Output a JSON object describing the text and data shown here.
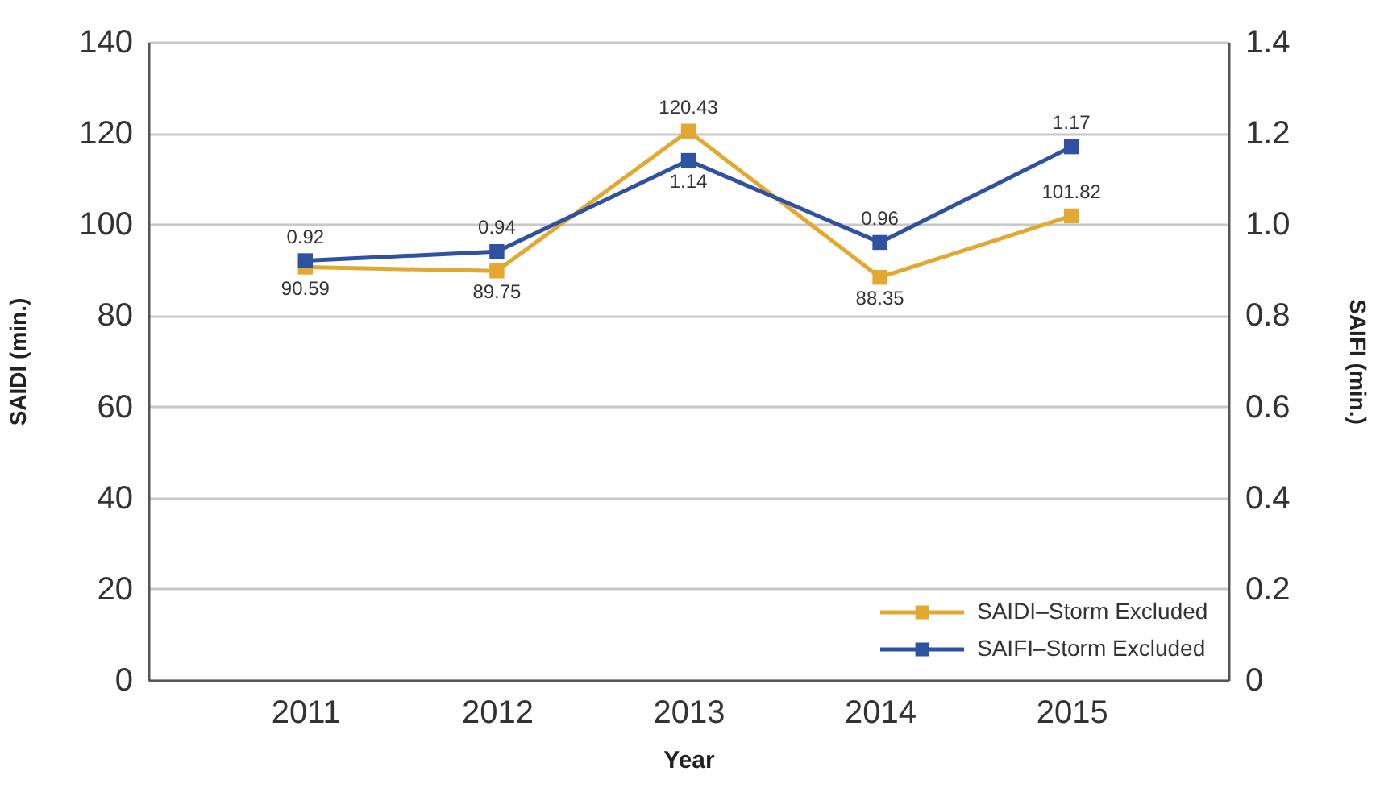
{
  "chart_data": {
    "type": "line",
    "xlabel": "Year",
    "ylabel": "SAIDI (min.)",
    "y2label": "SAIFI (min.)",
    "categories": [
      "2011",
      "2012",
      "2013",
      "2014",
      "2015"
    ],
    "series": [
      {
        "name": "SAIDI–Storm Excluded",
        "color": "#e2a832",
        "values": [
          90.59,
          89.75,
          120.43,
          88.35,
          101.82
        ]
      },
      {
        "name": "SAIFI–Storm Excluded",
        "color": "#2f52a0",
        "axis": "y2",
        "values": [
          0.92,
          0.94,
          1.14,
          0.96,
          1.17
        ]
      }
    ],
    "ylim": [
      0,
      140
    ],
    "yticks": [
      0,
      20,
      40,
      60,
      80,
      100,
      120,
      140
    ],
    "y2lim": [
      0,
      1.4
    ],
    "y2ticks": [
      0,
      0.2,
      0.4,
      0.6,
      0.8,
      {
        "value": 1,
        "label": "1.0"
      },
      1.2,
      1.4
    ],
    "grid": "y",
    "legend": "bottom right",
    "marker": "square",
    "line_style": "solid",
    "data_labels": true
  }
}
